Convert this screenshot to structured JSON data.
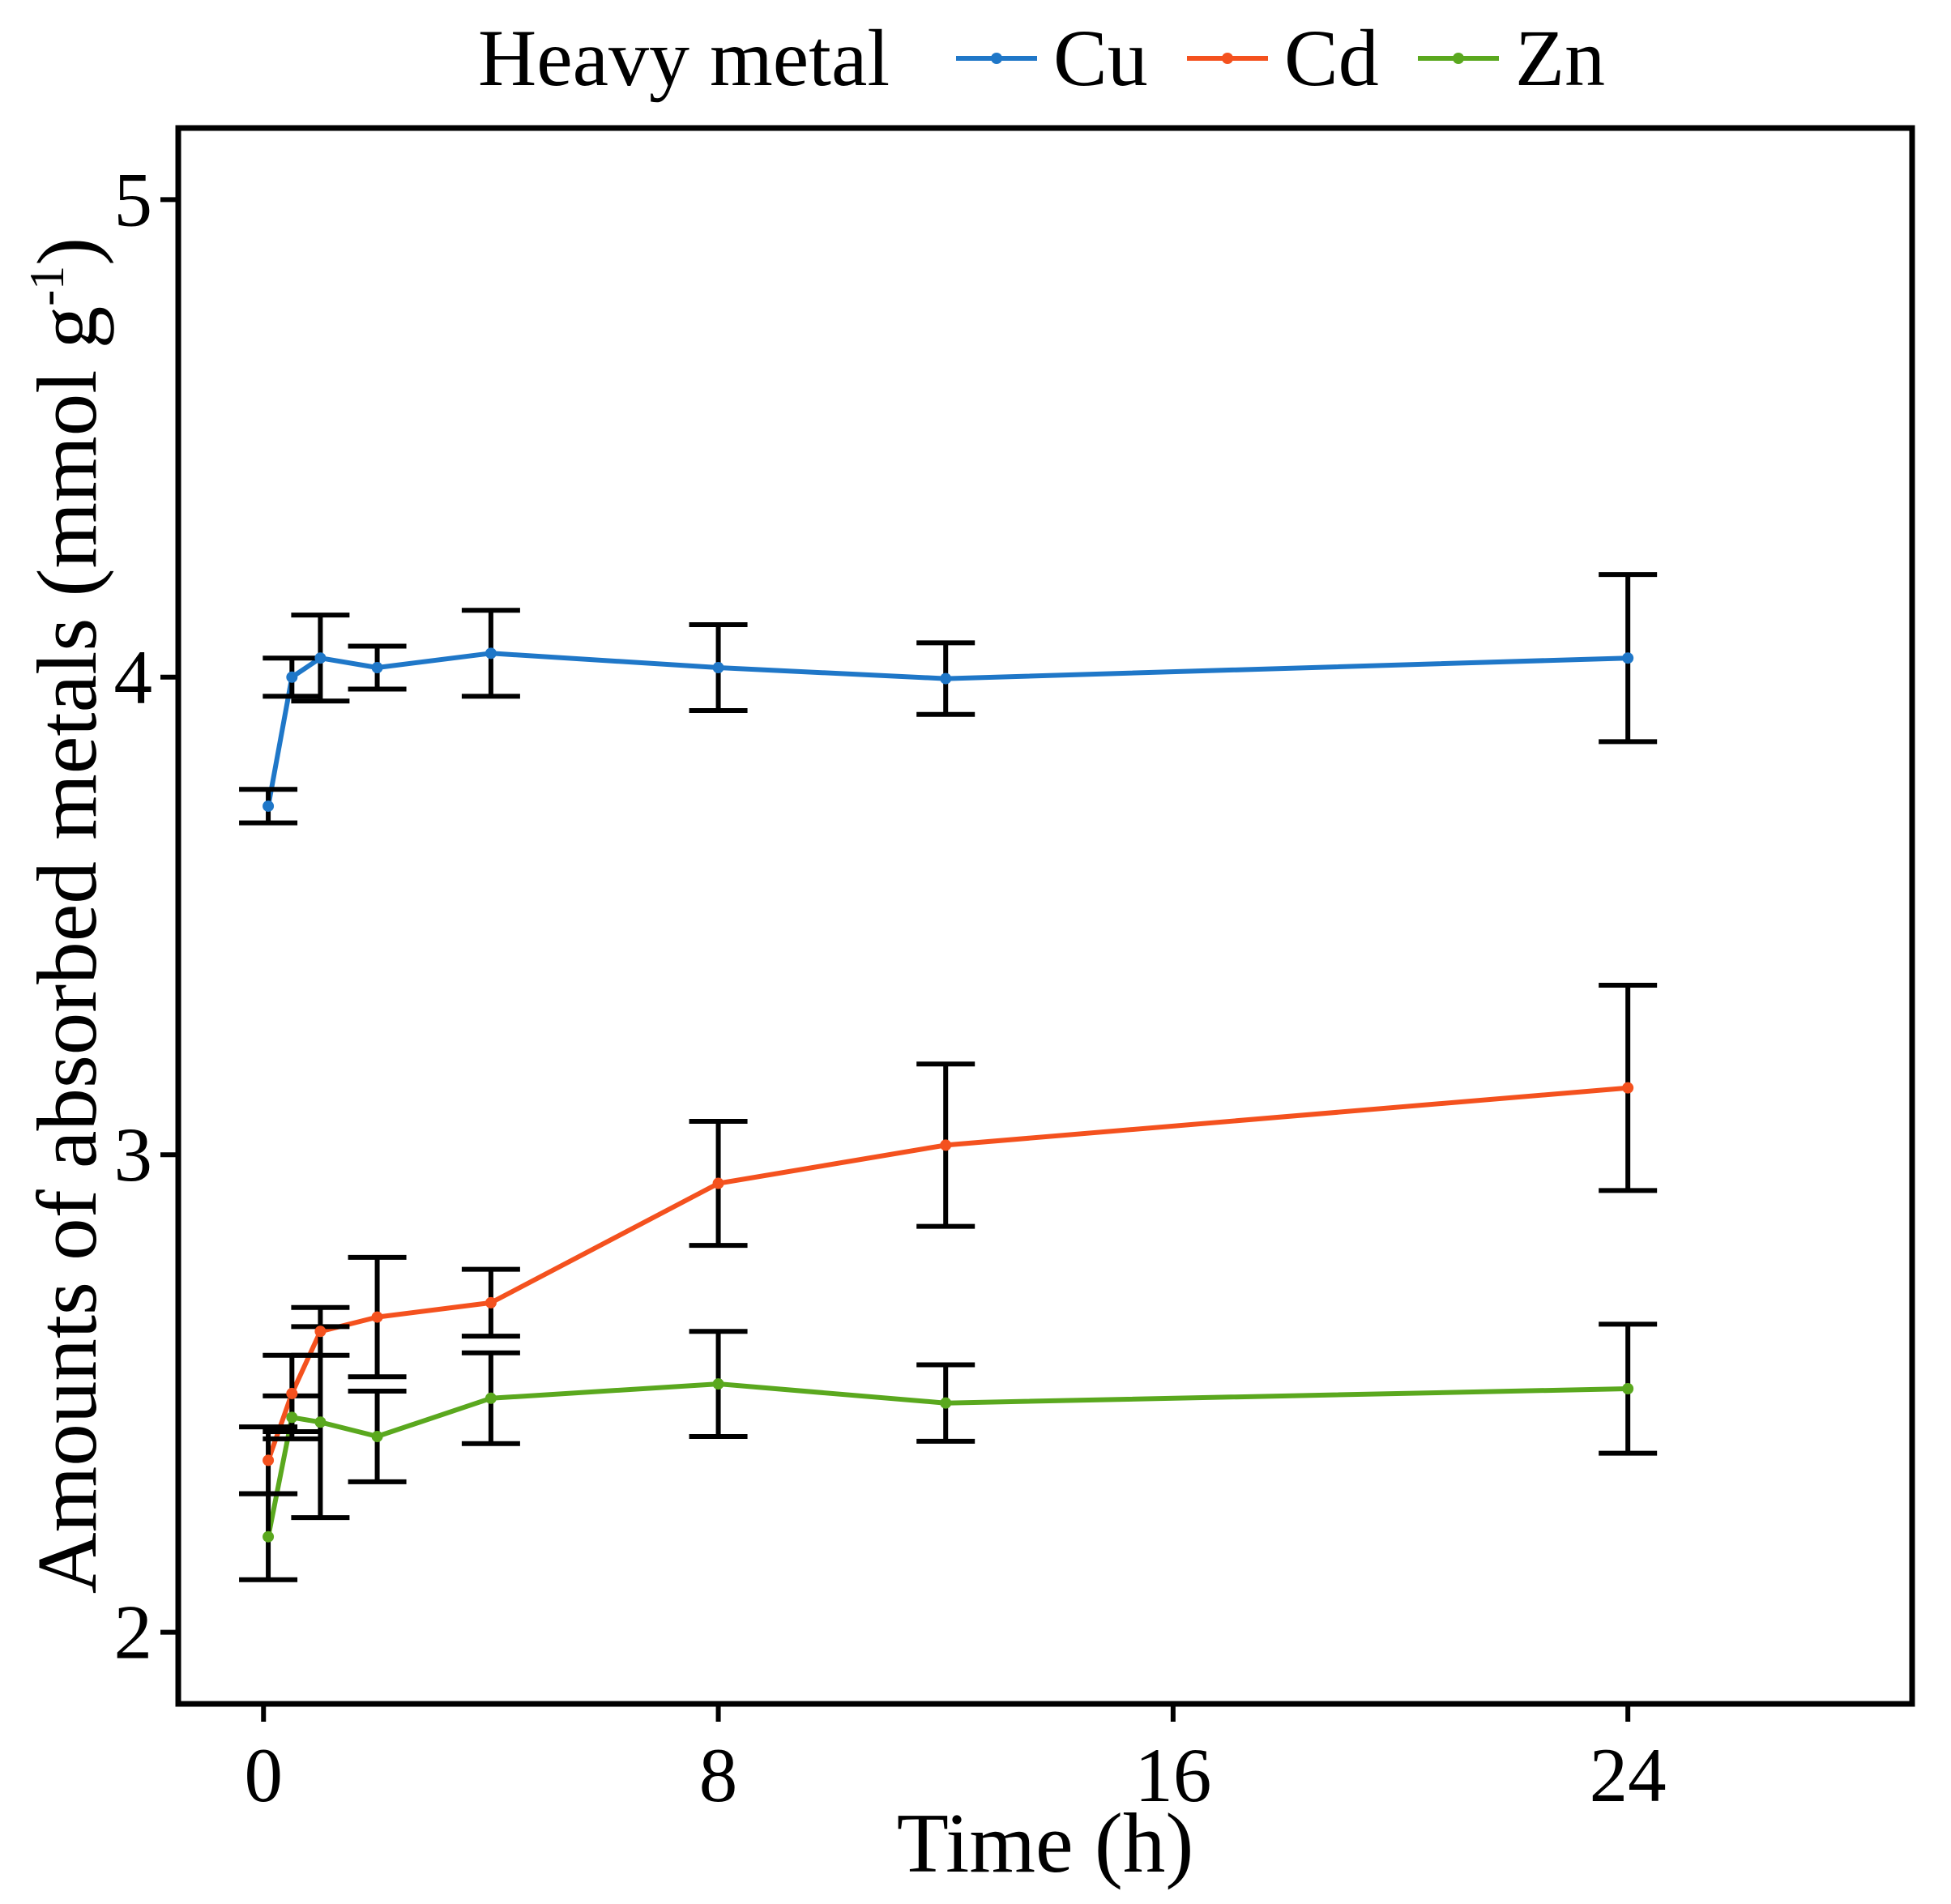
{
  "chart_data": {
    "type": "line",
    "title": "",
    "xlabel": "Time (h)",
    "ylabel": "Amounts of absorbed metals (mmol g",
    "ylabel_sup": "-1",
    "ylabel_close": ")",
    "xlim": [
      -1.5,
      29
    ],
    "ylim": [
      1.85,
      5.15
    ],
    "xticks": [
      0,
      8,
      16,
      24
    ],
    "xtick_labels": [
      "0",
      "8",
      "16",
      "24"
    ],
    "yticks": [
      2,
      3,
      4,
      5
    ],
    "ytick_labels": [
      "2",
      "3",
      "4",
      "5"
    ],
    "grid": false,
    "legend": {
      "title": "Heavy metal",
      "position": "top"
    },
    "series": [
      {
        "name": "Cu",
        "color": "#1f77c8",
        "x": [
          0.083,
          0.5,
          1,
          2,
          4,
          8,
          12,
          24
        ],
        "y": [
          3.73,
          4.0,
          4.04,
          4.02,
          4.05,
          4.02,
          3.997,
          4.04
        ],
        "err": [
          0.035,
          0.04,
          0.09,
          0.045,
          0.09,
          0.09,
          0.075,
          0.175
        ]
      },
      {
        "name": "Cd",
        "color": "#f4511e",
        "x": [
          0.083,
          0.5,
          1,
          2,
          4,
          8,
          12,
          24
        ],
        "y": [
          2.36,
          2.5,
          2.63,
          2.66,
          2.69,
          2.94,
          3.02,
          3.14
        ],
        "err": [
          0.07,
          0.08,
          0.05,
          0.125,
          0.07,
          0.13,
          0.17,
          0.215
        ]
      },
      {
        "name": "Zn",
        "color": "#5aa81e",
        "x": [
          0.083,
          0.5,
          1,
          2,
          4,
          8,
          12,
          24
        ],
        "y": [
          2.2,
          2.45,
          2.44,
          2.41,
          2.49,
          2.52,
          2.48,
          2.51
        ],
        "err": [
          0.09,
          0.045,
          0.2,
          0.095,
          0.095,
          0.11,
          0.08,
          0.135
        ]
      }
    ]
  }
}
